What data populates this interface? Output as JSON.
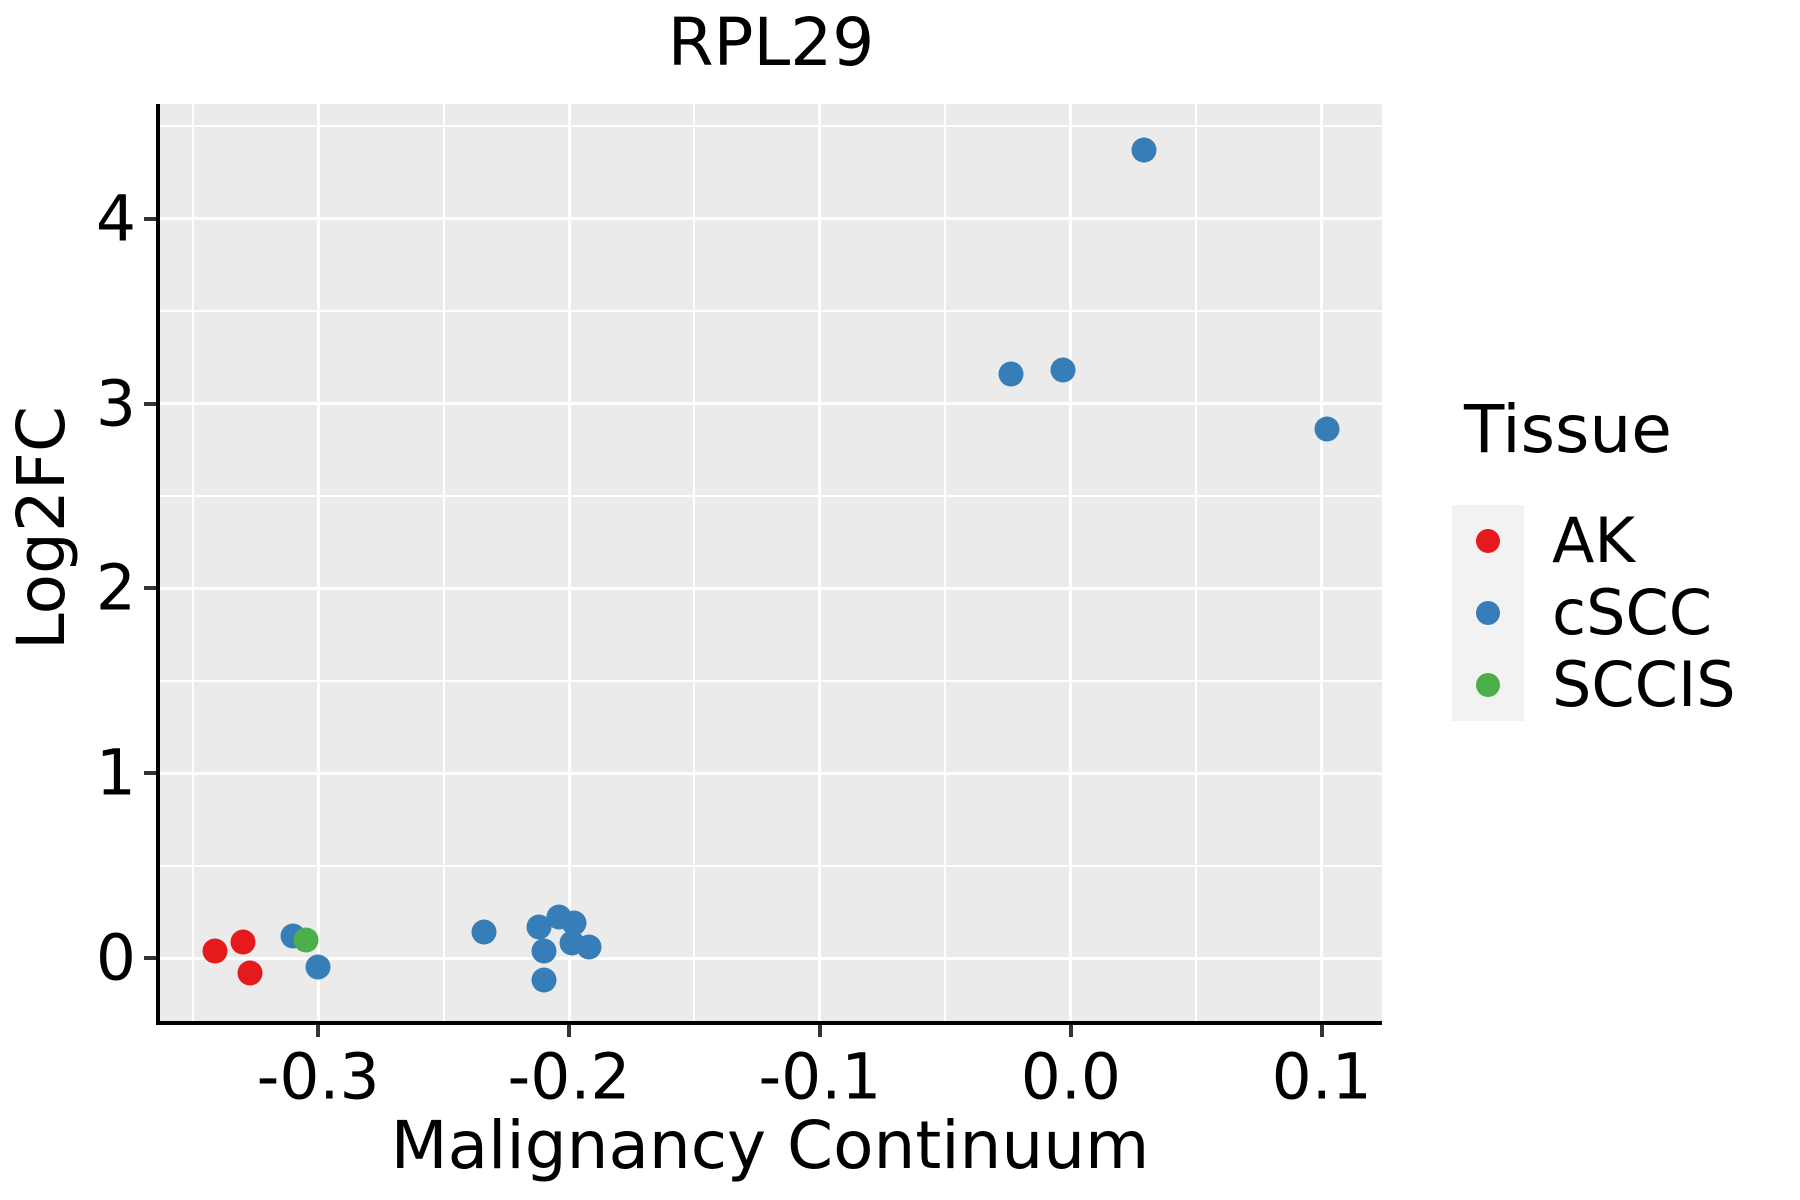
{
  "chart_data": {
    "type": "scatter",
    "title": "RPL29",
    "xlabel": "Malignancy Continuum",
    "ylabel": "Log2FC",
    "xlim": [
      -0.363,
      0.124
    ],
    "ylim": [
      -0.34,
      4.62
    ],
    "x_ticks": [
      -0.3,
      -0.2,
      -0.1,
      0.0,
      0.1
    ],
    "x_tick_labels": [
      "-0.3",
      "-0.2",
      "-0.1",
      "0.0",
      "0.1"
    ],
    "x_minor_ticks": [
      -0.35,
      -0.25,
      -0.15,
      -0.05,
      0.05
    ],
    "y_ticks": [
      0,
      1,
      2,
      3,
      4
    ],
    "y_tick_labels": [
      "0",
      "1",
      "2",
      "3",
      "4"
    ],
    "y_minor_ticks": [
      0.5,
      1.5,
      2.5,
      3.5,
      4.5
    ],
    "grid": "major and minor white gridlines on gray panel",
    "legend_position": "right",
    "series": [
      {
        "name": "AK",
        "color": "#e41a1c",
        "points": [
          [
            -0.341,
            0.04
          ],
          [
            -0.33,
            0.09
          ],
          [
            -0.327,
            -0.08
          ]
        ]
      },
      {
        "name": "cSCC",
        "color": "#377eb8",
        "points": [
          [
            -0.31,
            0.12
          ],
          [
            -0.3,
            -0.05
          ],
          [
            -0.234,
            0.14
          ],
          [
            -0.212,
            0.17
          ],
          [
            -0.21,
            0.04
          ],
          [
            -0.204,
            0.22
          ],
          [
            -0.198,
            0.19
          ],
          [
            -0.199,
            0.08
          ],
          [
            -0.192,
            0.06
          ],
          [
            -0.21,
            -0.12
          ],
          [
            -0.024,
            3.16
          ],
          [
            -0.003,
            3.18
          ],
          [
            0.029,
            4.37
          ],
          [
            0.102,
            2.86
          ]
        ]
      },
      {
        "name": "SCCIS",
        "color": "#4daf4a",
        "points": [
          [
            -0.305,
            0.1
          ]
        ]
      }
    ]
  },
  "legend": {
    "title": "Tissue",
    "entries": [
      {
        "label": "AK",
        "color": "#e41a1c"
      },
      {
        "label": "cSCC",
        "color": "#377eb8"
      },
      {
        "label": "SCCIS",
        "color": "#4daf4a"
      }
    ]
  },
  "style": {
    "panel_bg": "#ebebeb",
    "grid_color": "#ffffff",
    "axis_line_color": "#000000",
    "tick_mark_color": "#333333",
    "legend_key_bg": "#f2f2f2",
    "text_color": "#000000"
  }
}
